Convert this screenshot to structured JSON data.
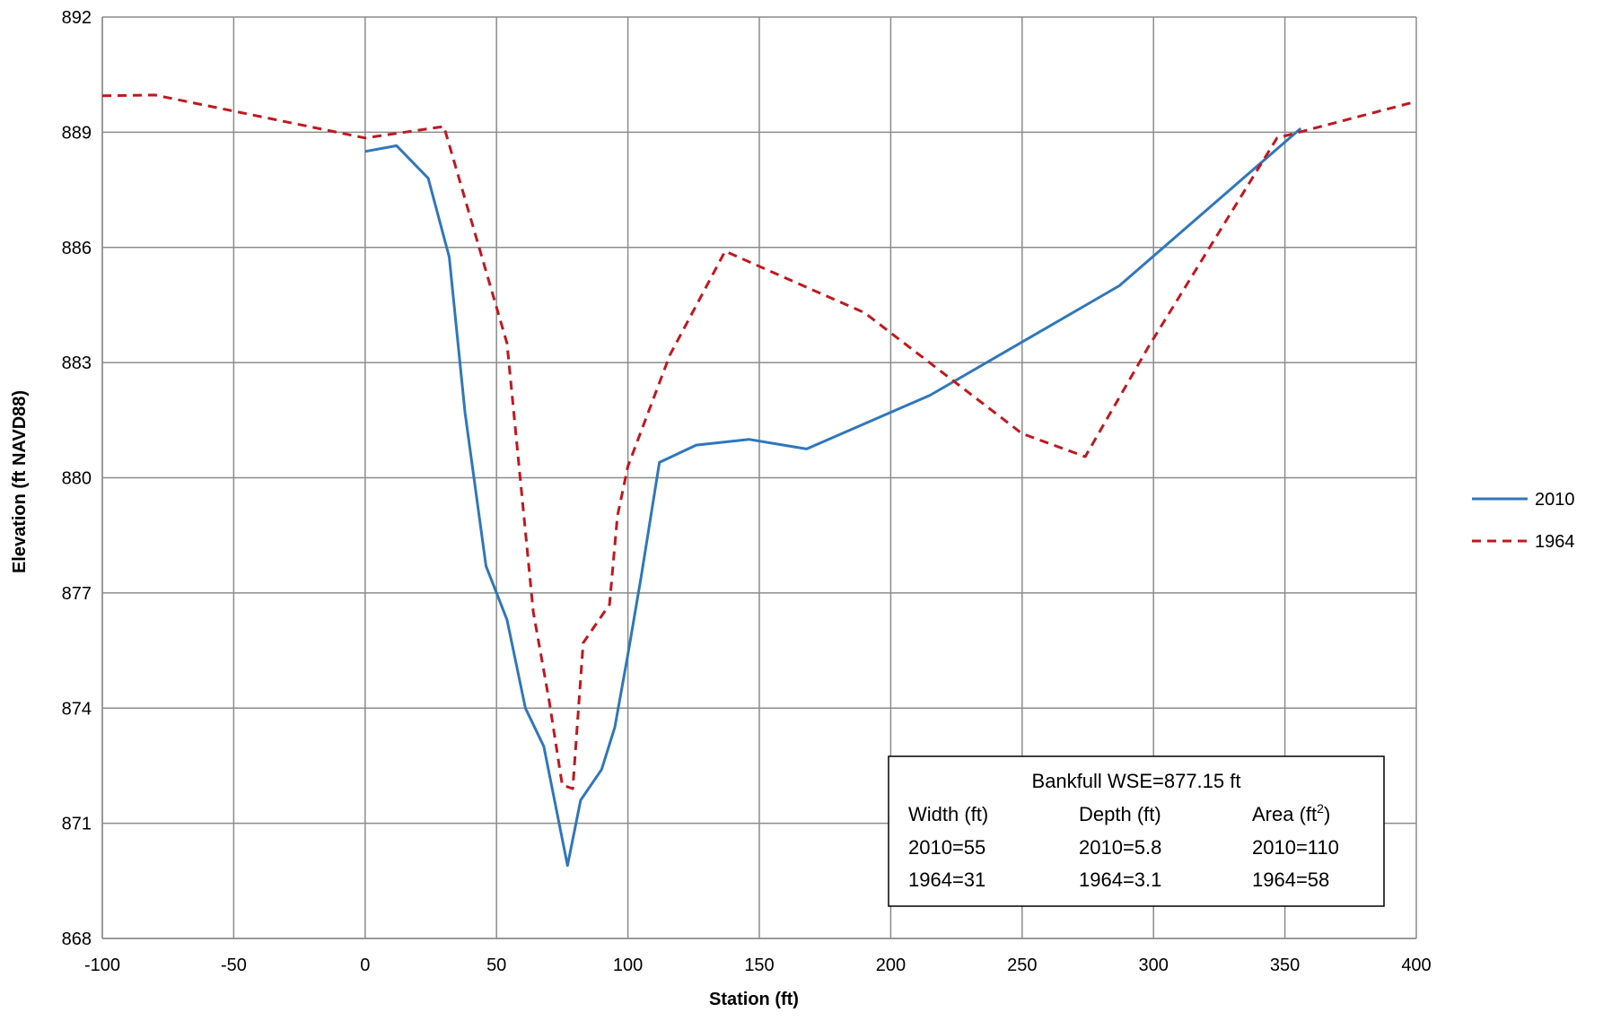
{
  "chart_data": {
    "type": "line",
    "title": "",
    "xlabel": "Station (ft)",
    "ylabel": "Elevation (ft NAVD88)",
    "xlim": [
      -100,
      400
    ],
    "ylim": [
      868,
      892
    ],
    "xticks": [
      -100,
      -50,
      0,
      50,
      100,
      150,
      200,
      250,
      300,
      350,
      400
    ],
    "yticks": [
      868,
      871,
      874,
      877,
      880,
      883,
      886,
      889,
      892
    ],
    "grid": true,
    "legend_position": "right",
    "series": [
      {
        "name": "2010",
        "color": "#2f77bc",
        "dash": "solid",
        "x": [
          0,
          12,
          24,
          32,
          38,
          46,
          54,
          61,
          68,
          77,
          82,
          90,
          95,
          100,
          105,
          112,
          126,
          146,
          168,
          215,
          287,
          356
        ],
        "y": [
          888.5,
          888.65,
          887.8,
          885.75,
          881.7,
          877.7,
          876.3,
          874.0,
          873.0,
          869.9,
          871.6,
          872.4,
          873.5,
          875.4,
          877.4,
          880.4,
          880.85,
          881.0,
          880.75,
          882.15,
          885.0,
          889.1
        ]
      },
      {
        "name": "1964",
        "color": "#c0181f",
        "dash": "dashed",
        "x": [
          -100,
          -80,
          0,
          30,
          54,
          64,
          70,
          75,
          79,
          83,
          93,
          96,
          100,
          116,
          137,
          170,
          190,
          250,
          274,
          298,
          347,
          400
        ],
        "y": [
          889.95,
          889.97,
          888.85,
          889.15,
          883.5,
          876.5,
          874.2,
          872.0,
          871.9,
          875.7,
          876.7,
          879.0,
          880.3,
          883.2,
          885.9,
          884.9,
          884.3,
          881.15,
          880.55,
          883.4,
          888.85,
          889.8
        ]
      }
    ],
    "annotation": {
      "title": "Bankfull WSE=877.15 ft",
      "headers": [
        "Width (ft)",
        "Depth (ft)",
        "Area (ft",
        "2",
        ")"
      ],
      "rows": [
        [
          "2010=55",
          "2010=5.8",
          "2010=110"
        ],
        [
          "1964=31",
          "1964=3.1",
          "1964=58"
        ]
      ]
    }
  }
}
